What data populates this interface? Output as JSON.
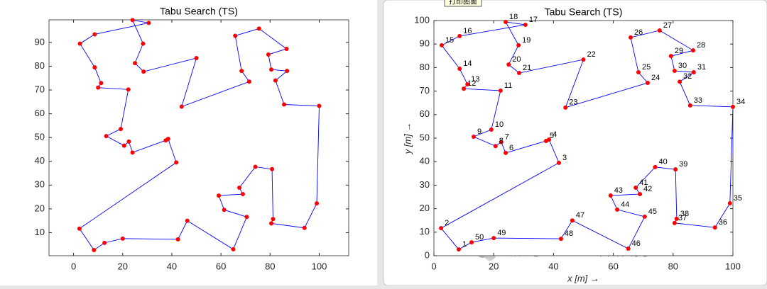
{
  "chart_data": [
    {
      "type": "line",
      "title": "Tabu Search (TS)",
      "x": [
        8.3,
        2.4,
        41.8,
        38.5,
        37.5,
        24,
        22.5,
        20.6,
        13.3,
        19.2,
        22.3,
        10,
        11.2,
        8.6,
        2.6,
        8.6,
        30.6,
        24,
        28.3,
        25,
        28.5,
        50,
        44,
        71.5,
        68.4,
        65.8,
        75.5,
        86.7,
        79.3,
        80.5,
        86.9,
        82.2,
        85.7,
        100,
        99,
        94,
        80.5,
        81.2,
        80.8,
        74,
        67.5,
        68.9,
        59.1,
        61.3,
        70.5,
        65,
        46.3,
        42.5,
        20,
        12.6
      ],
      "series": [
        {
          "color": "#0000ff",
          "marker_color": "#ff0000",
          "values": [
            2.7,
            11.7,
            39.5,
            49.4,
            48.8,
            43.7,
            48.3,
            46.6,
            50.6,
            53.6,
            70.2,
            71,
            72.9,
            79.5,
            89.5,
            93.4,
            98.2,
            99.4,
            89.5,
            81.3,
            77.7,
            83.4,
            63,
            73.5,
            78,
            92.8,
            95.8,
            87.3,
            84.9,
            78.6,
            78,
            74,
            63.9,
            63.3,
            22.3,
            12,
            13.9,
            15.7,
            36.7,
            37.7,
            28.9,
            26.2,
            25.6,
            19.6,
            16.6,
            3,
            15,
            7.2,
            7.5,
            5.7
          ]
        }
      ],
      "closed": true,
      "xlim": [
        -10,
        112
      ],
      "ylim": [
        0.3,
        99.5
      ],
      "xticks": [
        0,
        20,
        40,
        60,
        80,
        100
      ],
      "yticks": [
        10,
        20,
        30,
        40,
        50,
        60,
        70,
        80,
        90
      ]
    },
    {
      "type": "line",
      "title": "Tabu Search (TS)",
      "xlabel": "x  [m] →",
      "ylabel": "y  [m] →",
      "x": [
        8.3,
        2.4,
        41.8,
        38.5,
        37.5,
        24,
        22.5,
        20.6,
        13.3,
        19.2,
        22.3,
        10,
        11.2,
        8.6,
        2.6,
        8.6,
        30.6,
        24,
        28.3,
        25,
        28.5,
        50,
        44,
        71.5,
        68.4,
        65.8,
        75.5,
        86.7,
        79.3,
        80.5,
        86.9,
        82.2,
        85.7,
        100,
        99,
        94,
        80.5,
        81.2,
        80.8,
        74,
        67.5,
        68.9,
        59.1,
        61.3,
        70.5,
        65,
        46.3,
        42.5,
        20,
        12.6
      ],
      "series": [
        {
          "color": "#0000ff",
          "marker_color": "#ff0000",
          "values": [
            2.7,
            11.7,
            39.5,
            49.4,
            48.8,
            43.7,
            48.3,
            46.6,
            50.6,
            53.6,
            70.2,
            71,
            72.9,
            79.5,
            89.5,
            93.4,
            98.2,
            99.4,
            89.5,
            81.3,
            77.7,
            83.4,
            63,
            73.5,
            78,
            92.8,
            95.8,
            87.3,
            84.9,
            78.6,
            78,
            74,
            63.9,
            63.3,
            22.3,
            12,
            13.9,
            15.7,
            36.7,
            37.7,
            28.9,
            26.2,
            25.6,
            19.6,
            16.6,
            3,
            15,
            7.2,
            7.5,
            5.7
          ]
        }
      ],
      "point_labels": [
        "1",
        "2",
        "3",
        "4",
        "5",
        "6",
        "7",
        "8",
        "9",
        "10",
        "11",
        "12",
        "13",
        "14",
        "15",
        "16",
        "17",
        "18",
        "19",
        "20",
        "21",
        "22",
        "23",
        "24",
        "25",
        "26",
        "27",
        "28",
        "29",
        "30",
        "31",
        "32",
        "33",
        "34",
        "35",
        "36",
        "37",
        "38",
        "39",
        "40",
        "41",
        "42",
        "43",
        "44",
        "45",
        "46",
        "47",
        "48",
        "49",
        "50"
      ],
      "closed": true,
      "xlim": [
        0,
        100
      ],
      "ylim": [
        0,
        100
      ],
      "xticks": [
        0,
        20,
        40,
        60,
        80,
        100
      ],
      "yticks": [
        0,
        10,
        20,
        30,
        40,
        50,
        60,
        70,
        80,
        90,
        100
      ]
    }
  ],
  "tooltip": "打印图窗",
  "watermark": "公众号 · Matlab科研助手"
}
